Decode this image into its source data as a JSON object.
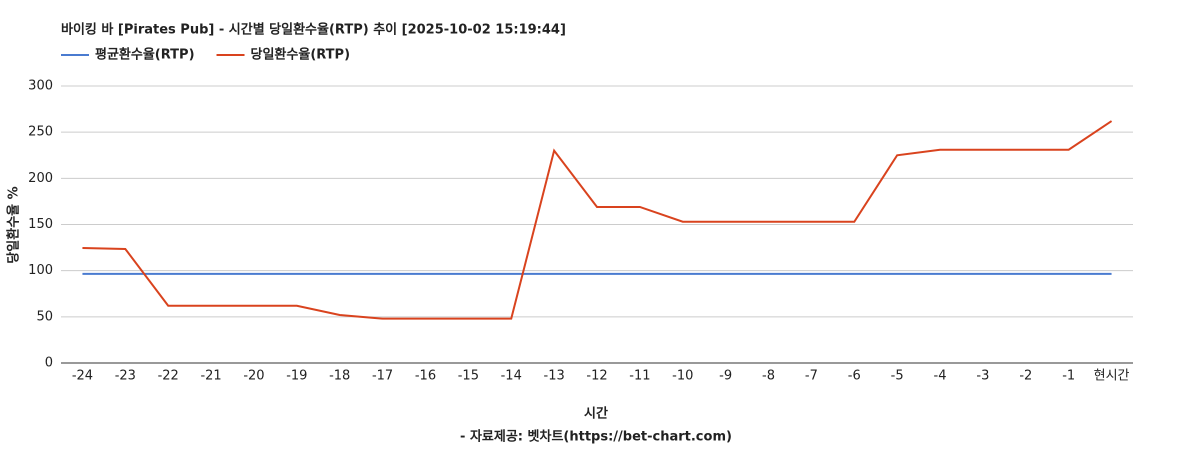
{
  "chart_data": {
    "type": "line",
    "title": "바이킹 바 [Pirates Pub] - 시간별 당일환수율(RTP) 추이 [2025-10-02 15:19:44]",
    "x_label": "시간",
    "y_label": "당일환수율 %",
    "caption": "- 자료제공: 벳차트(https://bet-chart.com)",
    "categories": [
      "-24",
      "-23",
      "-22",
      "-21",
      "-20",
      "-19",
      "-18",
      "-17",
      "-16",
      "-15",
      "-14",
      "-13",
      "-12",
      "-11",
      "-10",
      "-9",
      "-8",
      "-7",
      "-6",
      "-5",
      "-4",
      "-3",
      "-2",
      "-1",
      "현시간"
    ],
    "series": [
      {
        "name": "평균환수율(RTP)",
        "color": "#4a7bd0",
        "values": [
          96.5,
          96.5,
          96.5,
          96.5,
          96.5,
          96.5,
          96.5,
          96.5,
          96.5,
          96.5,
          96.5,
          96.5,
          96.5,
          96.5,
          96.5,
          96.5,
          96.5,
          96.5,
          96.5,
          96.5,
          96.5,
          96.5,
          96.5,
          96.5,
          96.5
        ]
      },
      {
        "name": "당일환수율(RTP)",
        "color": "#d9431e",
        "values": [
          124.5,
          123.5,
          62,
          62,
          62,
          62,
          52,
          48,
          48,
          48,
          48,
          230,
          169,
          169,
          153,
          153,
          153,
          153,
          153,
          225,
          231,
          231,
          231,
          231,
          262
        ]
      }
    ],
    "ylim": [
      0,
      300
    ],
    "yticks": [
      0,
      50,
      100,
      150,
      200,
      250,
      300
    ],
    "grid": true,
    "legend": "top-left"
  }
}
